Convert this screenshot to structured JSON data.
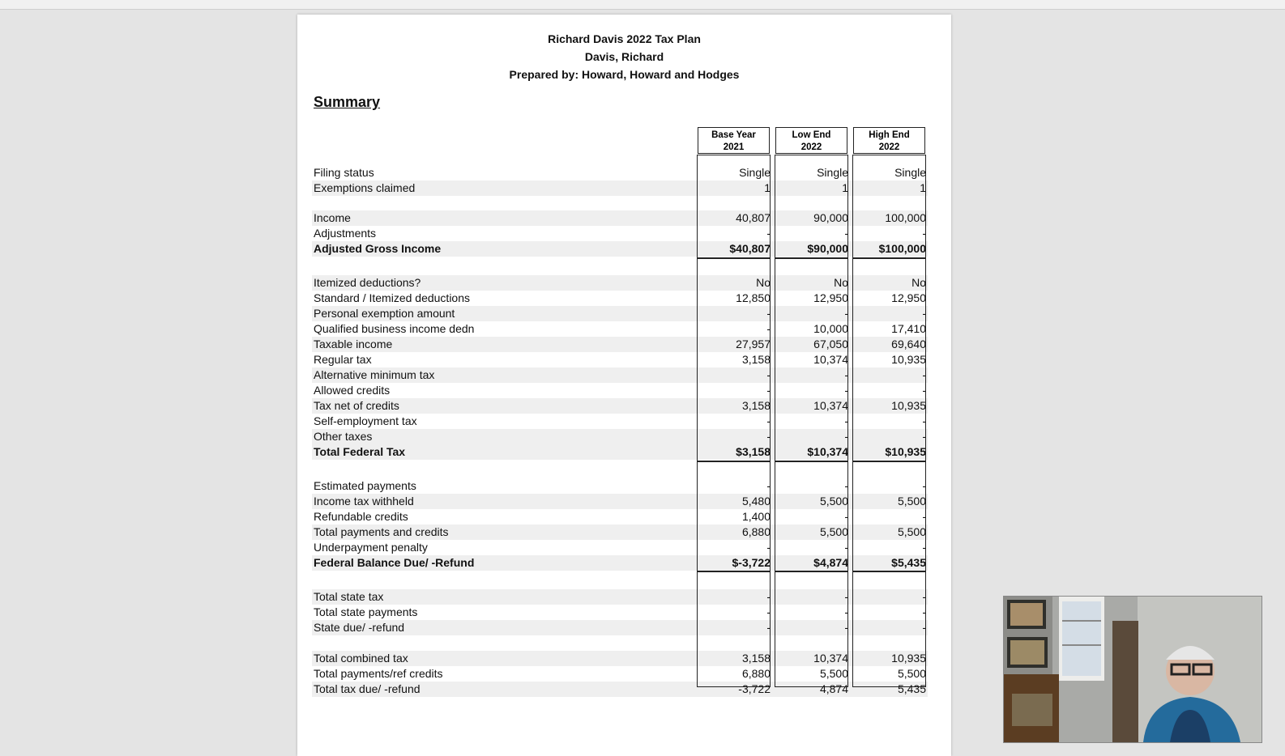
{
  "document": {
    "title": "Richard Davis 2022 Tax Plan",
    "client_name": "Davis, Richard",
    "prepared_by": "Prepared by: Howard, Howard and Hodges",
    "section_heading": "Summary"
  },
  "columns": [
    {
      "line1": "Base Year",
      "line2": "2021"
    },
    {
      "line1": "Low End",
      "line2": "2022"
    },
    {
      "line1": "High End",
      "line2": "2022"
    }
  ],
  "rows": [
    {
      "label": "Filing status",
      "values": [
        "Single",
        "Single",
        "Single"
      ]
    },
    {
      "label": "Exemptions claimed",
      "values": [
        "1",
        "1",
        "1"
      ]
    },
    {
      "label": "Income",
      "values": [
        "40,807",
        "90,000",
        "100,000"
      ]
    },
    {
      "label": "Adjustments",
      "values": [
        "-",
        "-",
        "-"
      ]
    },
    {
      "label": "Adjusted Gross Income",
      "values": [
        "$40,807",
        "$90,000",
        "$100,000"
      ]
    },
    {
      "label": "Itemized deductions?",
      "values": [
        "No",
        "No",
        "No"
      ]
    },
    {
      "label": "Standard / Itemized deductions",
      "values": [
        "12,850",
        "12,950",
        "12,950"
      ]
    },
    {
      "label": "Personal exemption amount",
      "values": [
        "-",
        "-",
        "-"
      ]
    },
    {
      "label": "Qualified business income dedn",
      "values": [
        "-",
        "10,000",
        "17,410"
      ]
    },
    {
      "label": "Taxable income",
      "values": [
        "27,957",
        "67,050",
        "69,640"
      ]
    },
    {
      "label": "Regular tax",
      "values": [
        "3,158",
        "10,374",
        "10,935"
      ]
    },
    {
      "label": "Alternative minimum tax",
      "values": [
        "-",
        "-",
        "-"
      ]
    },
    {
      "label": "Allowed credits",
      "values": [
        "-",
        "-",
        "-"
      ]
    },
    {
      "label": "Tax net of credits",
      "values": [
        "3,158",
        "10,374",
        "10,935"
      ]
    },
    {
      "label": "Self-employment tax",
      "values": [
        "-",
        "-",
        "-"
      ]
    },
    {
      "label": "Other taxes",
      "values": [
        "-",
        "-",
        "-"
      ]
    },
    {
      "label": "Total Federal Tax",
      "values": [
        "$3,158",
        "$10,374",
        "$10,935"
      ]
    },
    {
      "label": "Estimated payments",
      "values": [
        "-",
        "-",
        "-"
      ]
    },
    {
      "label": "Income tax withheld",
      "values": [
        "5,480",
        "5,500",
        "5,500"
      ]
    },
    {
      "label": "Refundable credits",
      "values": [
        "1,400",
        "-",
        "-"
      ]
    },
    {
      "label": "Total payments and credits",
      "values": [
        "6,880",
        "5,500",
        "5,500"
      ]
    },
    {
      "label": "Underpayment penalty",
      "values": [
        "-",
        "-",
        "-"
      ]
    },
    {
      "label": "Federal Balance Due/ -Refund",
      "values": [
        "$-3,722",
        "$4,874",
        "$5,435"
      ]
    },
    {
      "label": "Total state tax",
      "values": [
        "-",
        "-",
        "-"
      ]
    },
    {
      "label": "Total state payments",
      "values": [
        "-",
        "-",
        "-"
      ]
    },
    {
      "label": "State due/ -refund",
      "values": [
        "-",
        "-",
        "-"
      ]
    },
    {
      "label": "Total combined tax",
      "values": [
        "3,158",
        "10,374",
        "10,935"
      ]
    },
    {
      "label": "Total payments/ref credits",
      "values": [
        "6,880",
        "5,500",
        "5,500"
      ]
    },
    {
      "label": "Total tax due/ -refund",
      "values": [
        "-3,722",
        "4,874",
        "5,435"
      ]
    }
  ]
}
